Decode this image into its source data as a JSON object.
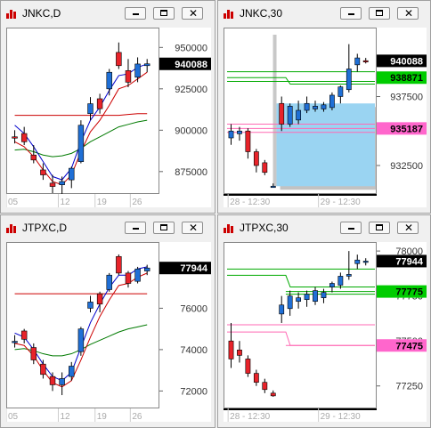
{
  "windows": [
    {
      "title": "JNKC,D",
      "chart_data": {
        "type": "candlestick",
        "x_ticks": [
          "05",
          "12",
          "19",
          "26"
        ],
        "y_ticks": [
          875000,
          900000,
          925000,
          950000
        ],
        "y_tick_labels": [
          "875000",
          "900000",
          "925000",
          "950000"
        ],
        "ylim": [
          862000,
          962000
        ],
        "current_price": {
          "value": 940088,
          "label": "940088",
          "color": "#000000"
        },
        "candles": [
          {
            "o": 896000,
            "h": 900000,
            "l": 892000,
            "c": 895500
          },
          {
            "o": 898000,
            "h": 902000,
            "l": 891000,
            "c": 893000
          },
          {
            "o": 885000,
            "h": 891000,
            "l": 880000,
            "c": 882000
          },
          {
            "o": 876000,
            "h": 880000,
            "l": 870000,
            "c": 873000
          },
          {
            "o": 868000,
            "h": 873000,
            "l": 862000,
            "c": 866000
          },
          {
            "o": 867000,
            "h": 872000,
            "l": 860000,
            "c": 869000
          },
          {
            "o": 870000,
            "h": 878000,
            "l": 865000,
            "c": 877000
          },
          {
            "o": 881000,
            "h": 906000,
            "l": 880000,
            "c": 903000
          },
          {
            "o": 910000,
            "h": 920000,
            "l": 906000,
            "c": 916000
          },
          {
            "o": 919000,
            "h": 922000,
            "l": 910000,
            "c": 913000
          },
          {
            "o": 925000,
            "h": 937000,
            "l": 921000,
            "c": 935000
          },
          {
            "o": 947000,
            "h": 953000,
            "l": 937000,
            "c": 939000
          },
          {
            "o": 936000,
            "h": 943000,
            "l": 926000,
            "c": 929000
          },
          {
            "o": 932000,
            "h": 944000,
            "l": 929000,
            "c": 940000
          },
          {
            "o": 939000,
            "h": 943000,
            "l": 935000,
            "c": 940088
          }
        ],
        "lines": [
          {
            "color": "#cc0000",
            "values": [
              909000,
              909000,
              909000,
              909000,
              909000,
              909000,
              909000,
              909000,
              909000,
              909000,
              909000,
              909000,
              909500,
              910000,
              910000
            ]
          },
          {
            "color": "#007a00",
            "values": [
              888000,
              888500,
              887000,
              885000,
              884000,
              884500,
              886000,
              889000,
              893000,
              896000,
              899000,
              902000,
              903500,
              905000,
              906000
            ]
          },
          {
            "color": "#0000cc",
            "values": [
              903000,
              898000,
              890000,
              881000,
              872000,
              870000,
              877000,
              893000,
              906000,
              914000,
              924000,
              933000,
              934000,
              938000,
              940000
            ]
          },
          {
            "color": "#cc0000",
            "values": [
              893000,
              890000,
              884000,
              876000,
              869000,
              867000,
              873000,
              887000,
              899000,
              906000,
              915000,
              925000,
              927000,
              931000,
              935000
            ]
          }
        ]
      }
    },
    {
      "title": "JNKC,30",
      "chart_data": {
        "type": "candlestick",
        "x_ticks": [
          "28 - 12:30",
          "29 - 12:30"
        ],
        "y_ticks": [
          932500,
          937500
        ],
        "y_tick_labels": [
          "932500",
          "937500"
        ],
        "ylim": [
          930500,
          942500
        ],
        "current_price": {
          "value": 940088,
          "label": "940088",
          "color": "#000000"
        },
        "candles": [
          {
            "o": 934500,
            "h": 935500,
            "l": 934000,
            "c": 935000
          },
          {
            "o": 934800,
            "h": 935300,
            "l": 934300,
            "c": 935000
          },
          {
            "o": 935000,
            "h": 935200,
            "l": 933000,
            "c": 933500
          },
          {
            "o": 933500,
            "h": 933700,
            "l": 932000,
            "c": 932500
          },
          {
            "o": 932700,
            "h": 932900,
            "l": 931800,
            "c": 932000
          },
          {
            "o": 931000,
            "h": 931200,
            "l": 930900,
            "c": 931000
          },
          {
            "o": 937000,
            "h": 937500,
            "l": 935000,
            "c": 935500
          },
          {
            "o": 935500,
            "h": 937000,
            "l": 935300,
            "c": 936800
          },
          {
            "o": 935800,
            "h": 937200,
            "l": 935500,
            "c": 936500
          },
          {
            "o": 936500,
            "h": 937500,
            "l": 936300,
            "c": 937000
          },
          {
            "o": 936600,
            "h": 937200,
            "l": 936400,
            "c": 936800
          },
          {
            "o": 936600,
            "h": 937100,
            "l": 936400,
            "c": 936900
          },
          {
            "o": 936700,
            "h": 937800,
            "l": 936500,
            "c": 937600
          },
          {
            "o": 937500,
            "h": 938300,
            "l": 937000,
            "c": 938200
          },
          {
            "o": 938000,
            "h": 941300,
            "l": 937800,
            "c": 939500
          },
          {
            "o": 939800,
            "h": 940600,
            "l": 939300,
            "c": 940300
          },
          {
            "o": 940100,
            "h": 940300,
            "l": 939900,
            "c": 940088
          }
        ],
        "highlight_box": {
          "x_start": 6,
          "x_end": 17,
          "y_low": 931000,
          "y_high": 937000
        },
        "hlines": [
          {
            "value": 939300,
            "color": "#00aa00",
            "from": 0,
            "to": 17
          },
          {
            "value": 938871,
            "color": "#00aa00",
            "from": 0,
            "to": 17,
            "step": {
              "at": 7,
              "value": 938400
            }
          },
          {
            "value": 938600,
            "color": "#00aa00",
            "from": 0,
            "to": 17
          },
          {
            "value": 935500,
            "color": "#ff69b4",
            "from": 0,
            "to": 17
          },
          {
            "value": 935187,
            "color": "#ff69b4",
            "from": 0,
            "to": 17
          },
          {
            "value": 934900,
            "color": "#ff69b4",
            "from": 0,
            "to": 17
          }
        ],
        "labels": [
          {
            "value": 938871,
            "label": "938871",
            "color": "#00cc00"
          },
          {
            "value": 935187,
            "label": "935187",
            "color": "#ff66cc"
          }
        ]
      }
    },
    {
      "title": "JTPXC,D",
      "chart_data": {
        "type": "candlestick",
        "x_ticks": [
          "05",
          "12",
          "19",
          "26"
        ],
        "y_ticks": [
          72000,
          74000,
          76000
        ],
        "y_tick_labels": [
          "72000",
          "74000",
          "76000"
        ],
        "ylim": [
          71200,
          79200
        ],
        "current_price": {
          "value": 77944,
          "label": "77944",
          "color": "#000000"
        },
        "candles": [
          {
            "o": 74400,
            "h": 74700,
            "l": 74100,
            "c": 74400
          },
          {
            "o": 74900,
            "h": 75000,
            "l": 74300,
            "c": 74500
          },
          {
            "o": 74100,
            "h": 74300,
            "l": 73300,
            "c": 73500
          },
          {
            "o": 73300,
            "h": 73500,
            "l": 72600,
            "c": 72800
          },
          {
            "o": 72700,
            "h": 72900,
            "l": 72000,
            "c": 72300
          },
          {
            "o": 72300,
            "h": 72900,
            "l": 71800,
            "c": 72600
          },
          {
            "o": 72700,
            "h": 73400,
            "l": 72500,
            "c": 73200
          },
          {
            "o": 73900,
            "h": 75100,
            "l": 73700,
            "c": 75000
          },
          {
            "o": 76000,
            "h": 76600,
            "l": 75800,
            "c": 76300
          },
          {
            "o": 76700,
            "h": 76800,
            "l": 75800,
            "c": 76200
          },
          {
            "o": 76900,
            "h": 77700,
            "l": 76800,
            "c": 77600
          },
          {
            "o": 78500,
            "h": 78600,
            "l": 77600,
            "c": 77700
          },
          {
            "o": 77700,
            "h": 77800,
            "l": 77000,
            "c": 77200
          },
          {
            "o": 77300,
            "h": 78000,
            "l": 77200,
            "c": 77900
          },
          {
            "o": 77800,
            "h": 78100,
            "l": 77600,
            "c": 77944
          }
        ],
        "lines": [
          {
            "color": "#cc0000",
            "values": [
              76700,
              76700,
              76700,
              76700,
              76700,
              76700,
              76700,
              76700,
              76700,
              76700,
              76700,
              76700,
              76700,
              76700,
              76700
            ]
          },
          {
            "color": "#007a00",
            "values": [
              74000,
              74050,
              73950,
              73800,
              73700,
              73700,
              73800,
              74000,
              74250,
              74450,
              74650,
              74850,
              75000,
              75100,
              75200
            ]
          },
          {
            "color": "#0000cc",
            "values": [
              74800,
              74600,
              74000,
              73300,
              72700,
              72500,
              72900,
              74100,
              75300,
              76200,
              77000,
              77600,
              77600,
              77900,
              78000
            ]
          },
          {
            "color": "#cc0000",
            "values": [
              74300,
              74200,
              73700,
              73000,
              72400,
              72200,
              72500,
              73500,
              74600,
              75600,
              76400,
              77100,
              77200,
              77500,
              77700
            ]
          }
        ]
      }
    },
    {
      "title": "JTPXC,30",
      "chart_data": {
        "type": "candlestick",
        "x_ticks": [
          "28 - 12:30",
          "29 - 12:30"
        ],
        "y_ticks": [
          77250,
          77500,
          77750,
          78000
        ],
        "y_tick_labels": [
          "77250",
          "77500",
          "77750",
          "78000"
        ],
        "ylim": [
          77130,
          78050
        ],
        "current_price": {
          "value": 77944,
          "label": "77944",
          "color": "#000000"
        },
        "candles": [
          {
            "o": 77500,
            "h": 77600,
            "l": 77350,
            "c": 77400
          },
          {
            "o": 77450,
            "h": 77500,
            "l": 77380,
            "c": 77420
          },
          {
            "o": 77400,
            "h": 77420,
            "l": 77300,
            "c": 77320
          },
          {
            "o": 77320,
            "h": 77340,
            "l": 77250,
            "c": 77270
          },
          {
            "o": 77270,
            "h": 77290,
            "l": 77210,
            "c": 77230
          },
          {
            "o": 77210,
            "h": 77225,
            "l": 77190,
            "c": 77195
          },
          {
            "o": 77650,
            "h": 77750,
            "l": 77600,
            "c": 77700
          },
          {
            "o": 77680,
            "h": 77780,
            "l": 77640,
            "c": 77750
          },
          {
            "o": 77720,
            "h": 77770,
            "l": 77680,
            "c": 77740
          },
          {
            "o": 77730,
            "h": 77780,
            "l": 77690,
            "c": 77760
          },
          {
            "o": 77720,
            "h": 77800,
            "l": 77700,
            "c": 77780
          },
          {
            "o": 77740,
            "h": 77790,
            "l": 77710,
            "c": 77770
          },
          {
            "o": 77800,
            "h": 77830,
            "l": 77770,
            "c": 77820
          },
          {
            "o": 77810,
            "h": 77880,
            "l": 77790,
            "c": 77860
          },
          {
            "o": 77860,
            "h": 78000,
            "l": 77840,
            "c": 77870
          },
          {
            "o": 77930,
            "h": 77980,
            "l": 77900,
            "c": 77950
          },
          {
            "o": 77940,
            "h": 77960,
            "l": 77920,
            "c": 77944
          }
        ],
        "hlines": [
          {
            "value": 77900,
            "color": "#00aa00",
            "from": 0,
            "to": 17
          },
          {
            "value": 77865,
            "color": "#00aa00",
            "from": 0,
            "to": 17,
            "step": {
              "at": 7,
              "value": 77800
            }
          },
          {
            "value": 77775,
            "color": "#00aa00",
            "from": 7,
            "to": 17
          },
          {
            "value": 77760,
            "color": "#00aa00",
            "from": 7,
            "to": 17
          },
          {
            "value": 77590,
            "color": "#ff69b4",
            "from": 0,
            "to": 17
          },
          {
            "value": 77550,
            "color": "#ff69b4",
            "from": 0,
            "to": 17,
            "step": {
              "at": 7,
              "value": 77475
            }
          },
          {
            "value": 77475,
            "color": "#ff69b4",
            "from": 7,
            "to": 17
          }
        ],
        "labels": [
          {
            "value": 77775,
            "label": "77775",
            "color": "#00cc00"
          },
          {
            "value": 77475,
            "label": "77475",
            "color": "#ff66cc"
          }
        ]
      }
    }
  ]
}
